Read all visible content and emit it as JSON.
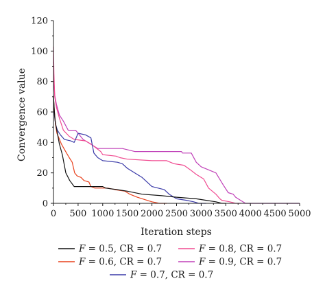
{
  "chart_data": {
    "type": "line",
    "xlabel": "Iteration steps",
    "ylabel": "Convergence value",
    "xlim": [
      0,
      5000
    ],
    "ylim": [
      0,
      120
    ],
    "x_ticks": [
      0,
      500,
      1000,
      1500,
      2000,
      2500,
      3000,
      3500,
      4000,
      4500,
      5000
    ],
    "y_ticks": [
      0,
      20,
      40,
      60,
      80,
      100,
      120
    ],
    "grid": false,
    "legend_position": "bottom",
    "series": [
      {
        "name": "F = 0.5, CR = 0.7",
        "color": "#111111",
        "points": [
          [
            0,
            71
          ],
          [
            15,
            62
          ],
          [
            30,
            55
          ],
          [
            50,
            51
          ],
          [
            80,
            46
          ],
          [
            120,
            39
          ],
          [
            180,
            32
          ],
          [
            250,
            20
          ],
          [
            330,
            15
          ],
          [
            420,
            11
          ],
          [
            1000,
            11
          ],
          [
            1060,
            10
          ],
          [
            1300,
            9
          ],
          [
            1500,
            8
          ],
          [
            1800,
            6
          ],
          [
            2200,
            5
          ],
          [
            2500,
            4
          ],
          [
            2900,
            3
          ],
          [
            3100,
            2
          ],
          [
            3300,
            1
          ],
          [
            3420,
            0
          ],
          [
            3500,
            0
          ]
        ]
      },
      {
        "name": "F = 0.6, CR = 0.7",
        "color": "#e8401c",
        "points": [
          [
            0,
            70
          ],
          [
            20,
            60
          ],
          [
            40,
            52
          ],
          [
            70,
            46
          ],
          [
            110,
            43
          ],
          [
            160,
            39
          ],
          [
            230,
            35
          ],
          [
            320,
            30
          ],
          [
            380,
            27
          ],
          [
            430,
            20
          ],
          [
            480,
            18
          ],
          [
            560,
            17
          ],
          [
            620,
            15
          ],
          [
            720,
            14
          ],
          [
            760,
            11
          ],
          [
            840,
            10
          ],
          [
            1100,
            10
          ],
          [
            1250,
            9
          ],
          [
            1450,
            8
          ],
          [
            1550,
            6
          ],
          [
            1700,
            4
          ],
          [
            1900,
            2
          ],
          [
            2000,
            1
          ],
          [
            2150,
            0
          ],
          [
            2300,
            0
          ]
        ]
      },
      {
        "name": "F = 0.7, CR = 0.7",
        "color": "#3a3aa8",
        "points": [
          [
            0,
            70
          ],
          [
            20,
            58
          ],
          [
            40,
            52
          ],
          [
            80,
            48
          ],
          [
            140,
            45
          ],
          [
            220,
            42
          ],
          [
            350,
            41
          ],
          [
            420,
            40
          ],
          [
            500,
            46
          ],
          [
            650,
            45
          ],
          [
            760,
            43
          ],
          [
            820,
            33
          ],
          [
            900,
            30
          ],
          [
            1000,
            28
          ],
          [
            1300,
            27
          ],
          [
            1400,
            26
          ],
          [
            1500,
            23
          ],
          [
            1800,
            17
          ],
          [
            2000,
            11
          ],
          [
            2250,
            9
          ],
          [
            2350,
            6
          ],
          [
            2500,
            3
          ],
          [
            2700,
            2
          ],
          [
            2850,
            1
          ],
          [
            2950,
            0
          ],
          [
            3100,
            0
          ]
        ]
      },
      {
        "name": "F = 0.8, CR = 0.7",
        "color": "#f04a90",
        "points": [
          [
            0,
            103
          ],
          [
            10,
            85
          ],
          [
            25,
            70
          ],
          [
            60,
            63
          ],
          [
            120,
            56
          ],
          [
            200,
            48
          ],
          [
            320,
            44
          ],
          [
            420,
            42
          ],
          [
            650,
            41
          ],
          [
            760,
            39
          ],
          [
            960,
            34
          ],
          [
            1000,
            32
          ],
          [
            1270,
            31
          ],
          [
            1350,
            30
          ],
          [
            1500,
            29
          ],
          [
            2000,
            28
          ],
          [
            2300,
            28
          ],
          [
            2450,
            26
          ],
          [
            2650,
            25
          ],
          [
            2780,
            22
          ],
          [
            2900,
            19
          ],
          [
            3050,
            16
          ],
          [
            3150,
            10
          ],
          [
            3300,
            6
          ],
          [
            3380,
            3
          ],
          [
            3420,
            2
          ],
          [
            3580,
            1
          ],
          [
            3700,
            0
          ],
          [
            3800,
            0
          ]
        ]
      },
      {
        "name": "F = 0.9, CR = 0.7",
        "color": "#c040b8",
        "points": [
          [
            0,
            93
          ],
          [
            10,
            80
          ],
          [
            25,
            71
          ],
          [
            60,
            65
          ],
          [
            120,
            58
          ],
          [
            200,
            54
          ],
          [
            300,
            48
          ],
          [
            450,
            48
          ],
          [
            600,
            42
          ],
          [
            900,
            36
          ],
          [
            1400,
            36
          ],
          [
            1650,
            34
          ],
          [
            2200,
            34
          ],
          [
            2600,
            34
          ],
          [
            2620,
            33
          ],
          [
            2800,
            33
          ],
          [
            2900,
            27
          ],
          [
            3000,
            24
          ],
          [
            3300,
            20
          ],
          [
            3450,
            12
          ],
          [
            3550,
            7
          ],
          [
            3650,
            6
          ],
          [
            3700,
            4
          ],
          [
            3800,
            2
          ],
          [
            3900,
            0
          ],
          [
            5000,
            0
          ]
        ]
      }
    ]
  }
}
